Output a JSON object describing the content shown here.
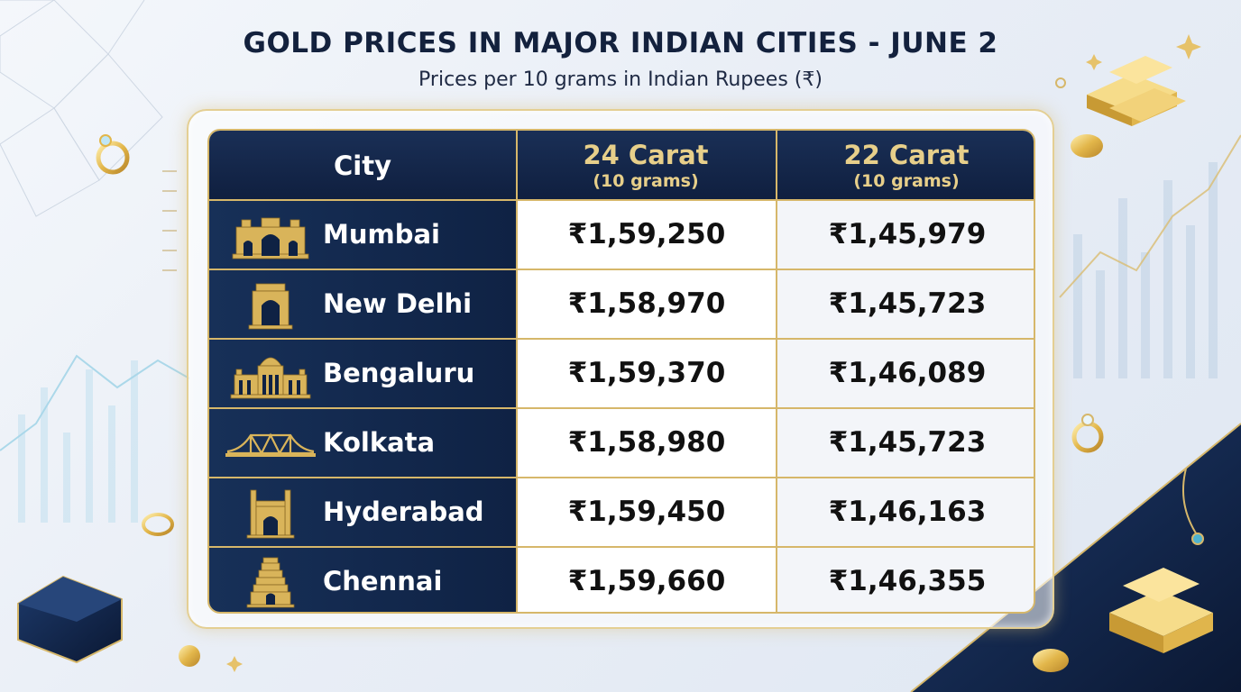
{
  "title": "GOLD PRICES IN MAJOR INDIAN CITIES - JUNE 2",
  "subtitle": "Prices per 10 grams in Indian Rupees (₹)",
  "table": {
    "headers": {
      "city": "City",
      "carat24": "24 Carat",
      "carat24_sub": "(10 grams)",
      "carat22": "22 Carat",
      "carat22_sub": "(10 grams)"
    },
    "rows": [
      {
        "city": "Mumbai",
        "icon": "gateway-of-india-icon",
        "p24": "₹1,59,250",
        "p22": "₹1,45,979"
      },
      {
        "city": "New Delhi",
        "icon": "india-gate-icon",
        "p24": "₹1,58,970",
        "p22": "₹1,45,723"
      },
      {
        "city": "Bengaluru",
        "icon": "vidhana-soudha-icon",
        "p24": "₹1,59,370",
        "p22": "₹1,46,089"
      },
      {
        "city": "Kolkata",
        "icon": "howrah-bridge-icon",
        "p24": "₹1,58,980",
        "p22": "₹1,45,723"
      },
      {
        "city": "Hyderabad",
        "icon": "charminar-icon",
        "p24": "₹1,59,450",
        "p22": "₹1,46,163"
      },
      {
        "city": "Chennai",
        "icon": "temple-gopuram-icon",
        "p24": "₹1,59,660",
        "p22": "₹1,46,355"
      }
    ]
  },
  "colors": {
    "navy": "#0f1f3f",
    "gold": "#d6b76a",
    "gold_text": "#e7cf8a"
  }
}
